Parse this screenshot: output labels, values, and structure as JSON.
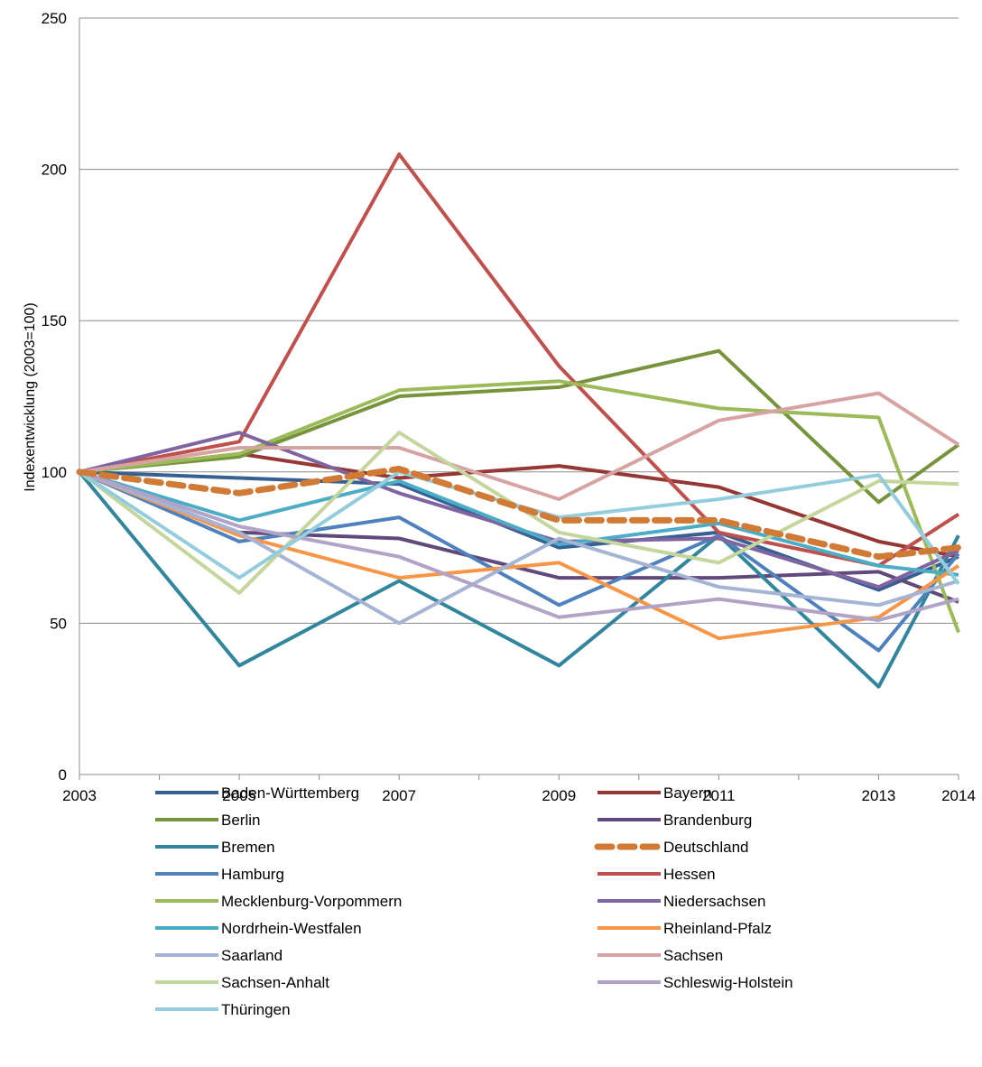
{
  "chart_data": {
    "type": "line",
    "title": "",
    "xlabel": "",
    "ylabel": "Indexentwicklung (2003=100)",
    "ylim": [
      0,
      250
    ],
    "yticks": [
      0,
      50,
      100,
      150,
      200,
      250
    ],
    "xlim": [
      2003,
      2014
    ],
    "xticks": [
      "2003",
      "2005",
      "2007",
      "2009",
      "2011",
      "2013",
      "2014"
    ],
    "x": [
      2003,
      2005,
      2007,
      2009,
      2011,
      2013,
      2014
    ],
    "grid": "horizontal",
    "legend_position": "bottom",
    "series": [
      {
        "name": "Baden-Württemberg",
        "color": "#376092",
        "dash": false,
        "values": [
          100,
          98,
          96,
          75,
          80,
          61,
          72
        ]
      },
      {
        "name": "Bayern",
        "color": "#953735",
        "dash": false,
        "values": [
          100,
          106,
          98,
          102,
          95,
          77,
          72
        ]
      },
      {
        "name": "Berlin",
        "color": "#77933C",
        "dash": false,
        "values": [
          100,
          105,
          125,
          128,
          140,
          90,
          109
        ]
      },
      {
        "name": "Brandenburg",
        "color": "#604A7B",
        "dash": false,
        "values": [
          100,
          80,
          78,
          65,
          65,
          67,
          57
        ]
      },
      {
        "name": "Bremen",
        "color": "#31859C",
        "dash": false,
        "values": [
          100,
          36,
          64,
          36,
          79,
          29,
          79
        ]
      },
      {
        "name": "Deutschland",
        "color": "#D07A36",
        "dash": true,
        "values": [
          100,
          93,
          101,
          84,
          84,
          72,
          75
        ]
      },
      {
        "name": "Hamburg",
        "color": "#4F81BD",
        "dash": false,
        "values": [
          100,
          77,
          85,
          56,
          79,
          41,
          73
        ]
      },
      {
        "name": "Hessen",
        "color": "#C0504D",
        "dash": false,
        "values": [
          100,
          110,
          205,
          135,
          80,
          69,
          86
        ]
      },
      {
        "name": "Mecklenburg-Vorpommern",
        "color": "#9BBB59",
        "dash": false,
        "values": [
          100,
          106,
          127,
          130,
          121,
          118,
          47
        ]
      },
      {
        "name": "Niedersachsen",
        "color": "#8064A2",
        "dash": false,
        "values": [
          100,
          113,
          93,
          77,
          78,
          62,
          74
        ]
      },
      {
        "name": "Nordrhein-Westfalen",
        "color": "#4BACC6",
        "dash": false,
        "values": [
          100,
          84,
          97,
          76,
          83,
          69,
          66
        ]
      },
      {
        "name": "Rheinland-Pfalz",
        "color": "#F79646",
        "dash": false,
        "values": [
          100,
          79,
          65,
          70,
          45,
          52,
          69
        ]
      },
      {
        "name": "Saarland",
        "color": "#A5B4D4",
        "dash": false,
        "values": [
          100,
          80,
          50,
          78,
          62,
          56,
          64
        ]
      },
      {
        "name": "Sachsen",
        "color": "#D7A3A2",
        "dash": false,
        "values": [
          100,
          108,
          108,
          91,
          117,
          126,
          109
        ]
      },
      {
        "name": "Sachsen-Anhalt",
        "color": "#C3D69B",
        "dash": false,
        "values": [
          100,
          60,
          113,
          80,
          70,
          97,
          96
        ]
      },
      {
        "name": "Schleswig-Holstein",
        "color": "#B3A2C7",
        "dash": false,
        "values": [
          100,
          82,
          72,
          52,
          58,
          51,
          58
        ]
      },
      {
        "name": "Thüringen",
        "color": "#93CDDD",
        "dash": false,
        "values": [
          100,
          65,
          100,
          85,
          91,
          99,
          63
        ]
      }
    ]
  }
}
